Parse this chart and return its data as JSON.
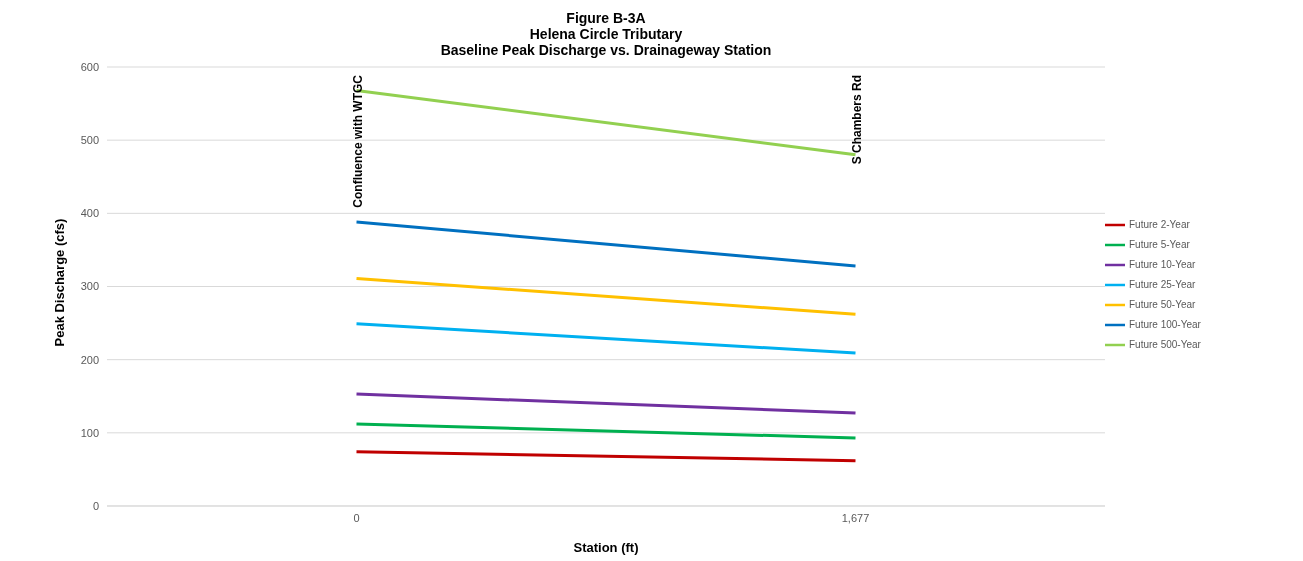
{
  "chart_data": {
    "type": "line",
    "title": "Figure B-3A\nHelena Circle Tributary\nBaseline Peak Discharge vs. Drainageway Station",
    "xlabel": "Station (ft)",
    "ylabel": "Peak Discharge (cfs)",
    "x": [
      0,
      1677
    ],
    "series": [
      {
        "name": "Future 2-Year",
        "color": "#c00000",
        "values": [
          74,
          62
        ]
      },
      {
        "name": "Future 5-Year",
        "color": "#00b050",
        "values": [
          112,
          93
        ]
      },
      {
        "name": "Future 10-Year",
        "color": "#7030a0",
        "values": [
          153,
          127
        ]
      },
      {
        "name": "Future 25-Year",
        "color": "#00b0f0",
        "values": [
          249,
          209
        ]
      },
      {
        "name": "Future 50-Year",
        "color": "#ffc000",
        "values": [
          311,
          262
        ]
      },
      {
        "name": "Future 100-Year",
        "color": "#0070c0",
        "values": [
          388,
          328
        ]
      },
      {
        "name": "Future 500-Year",
        "color": "#92d050",
        "values": [
          568,
          480
        ]
      }
    ],
    "xlim": [
      -838.5,
      2515.5
    ],
    "xticks": [
      0,
      {
        "value": 1677,
        "label": "1,677"
      }
    ],
    "ylim": [
      0,
      600
    ],
    "yticks": [
      0,
      100,
      200,
      300,
      400,
      500,
      600
    ],
    "grid": "y",
    "legend": "right",
    "marker": "none",
    "line_style": "solid",
    "annotations": [
      "Confluence with WTGC",
      "S Chambers Rd"
    ]
  }
}
